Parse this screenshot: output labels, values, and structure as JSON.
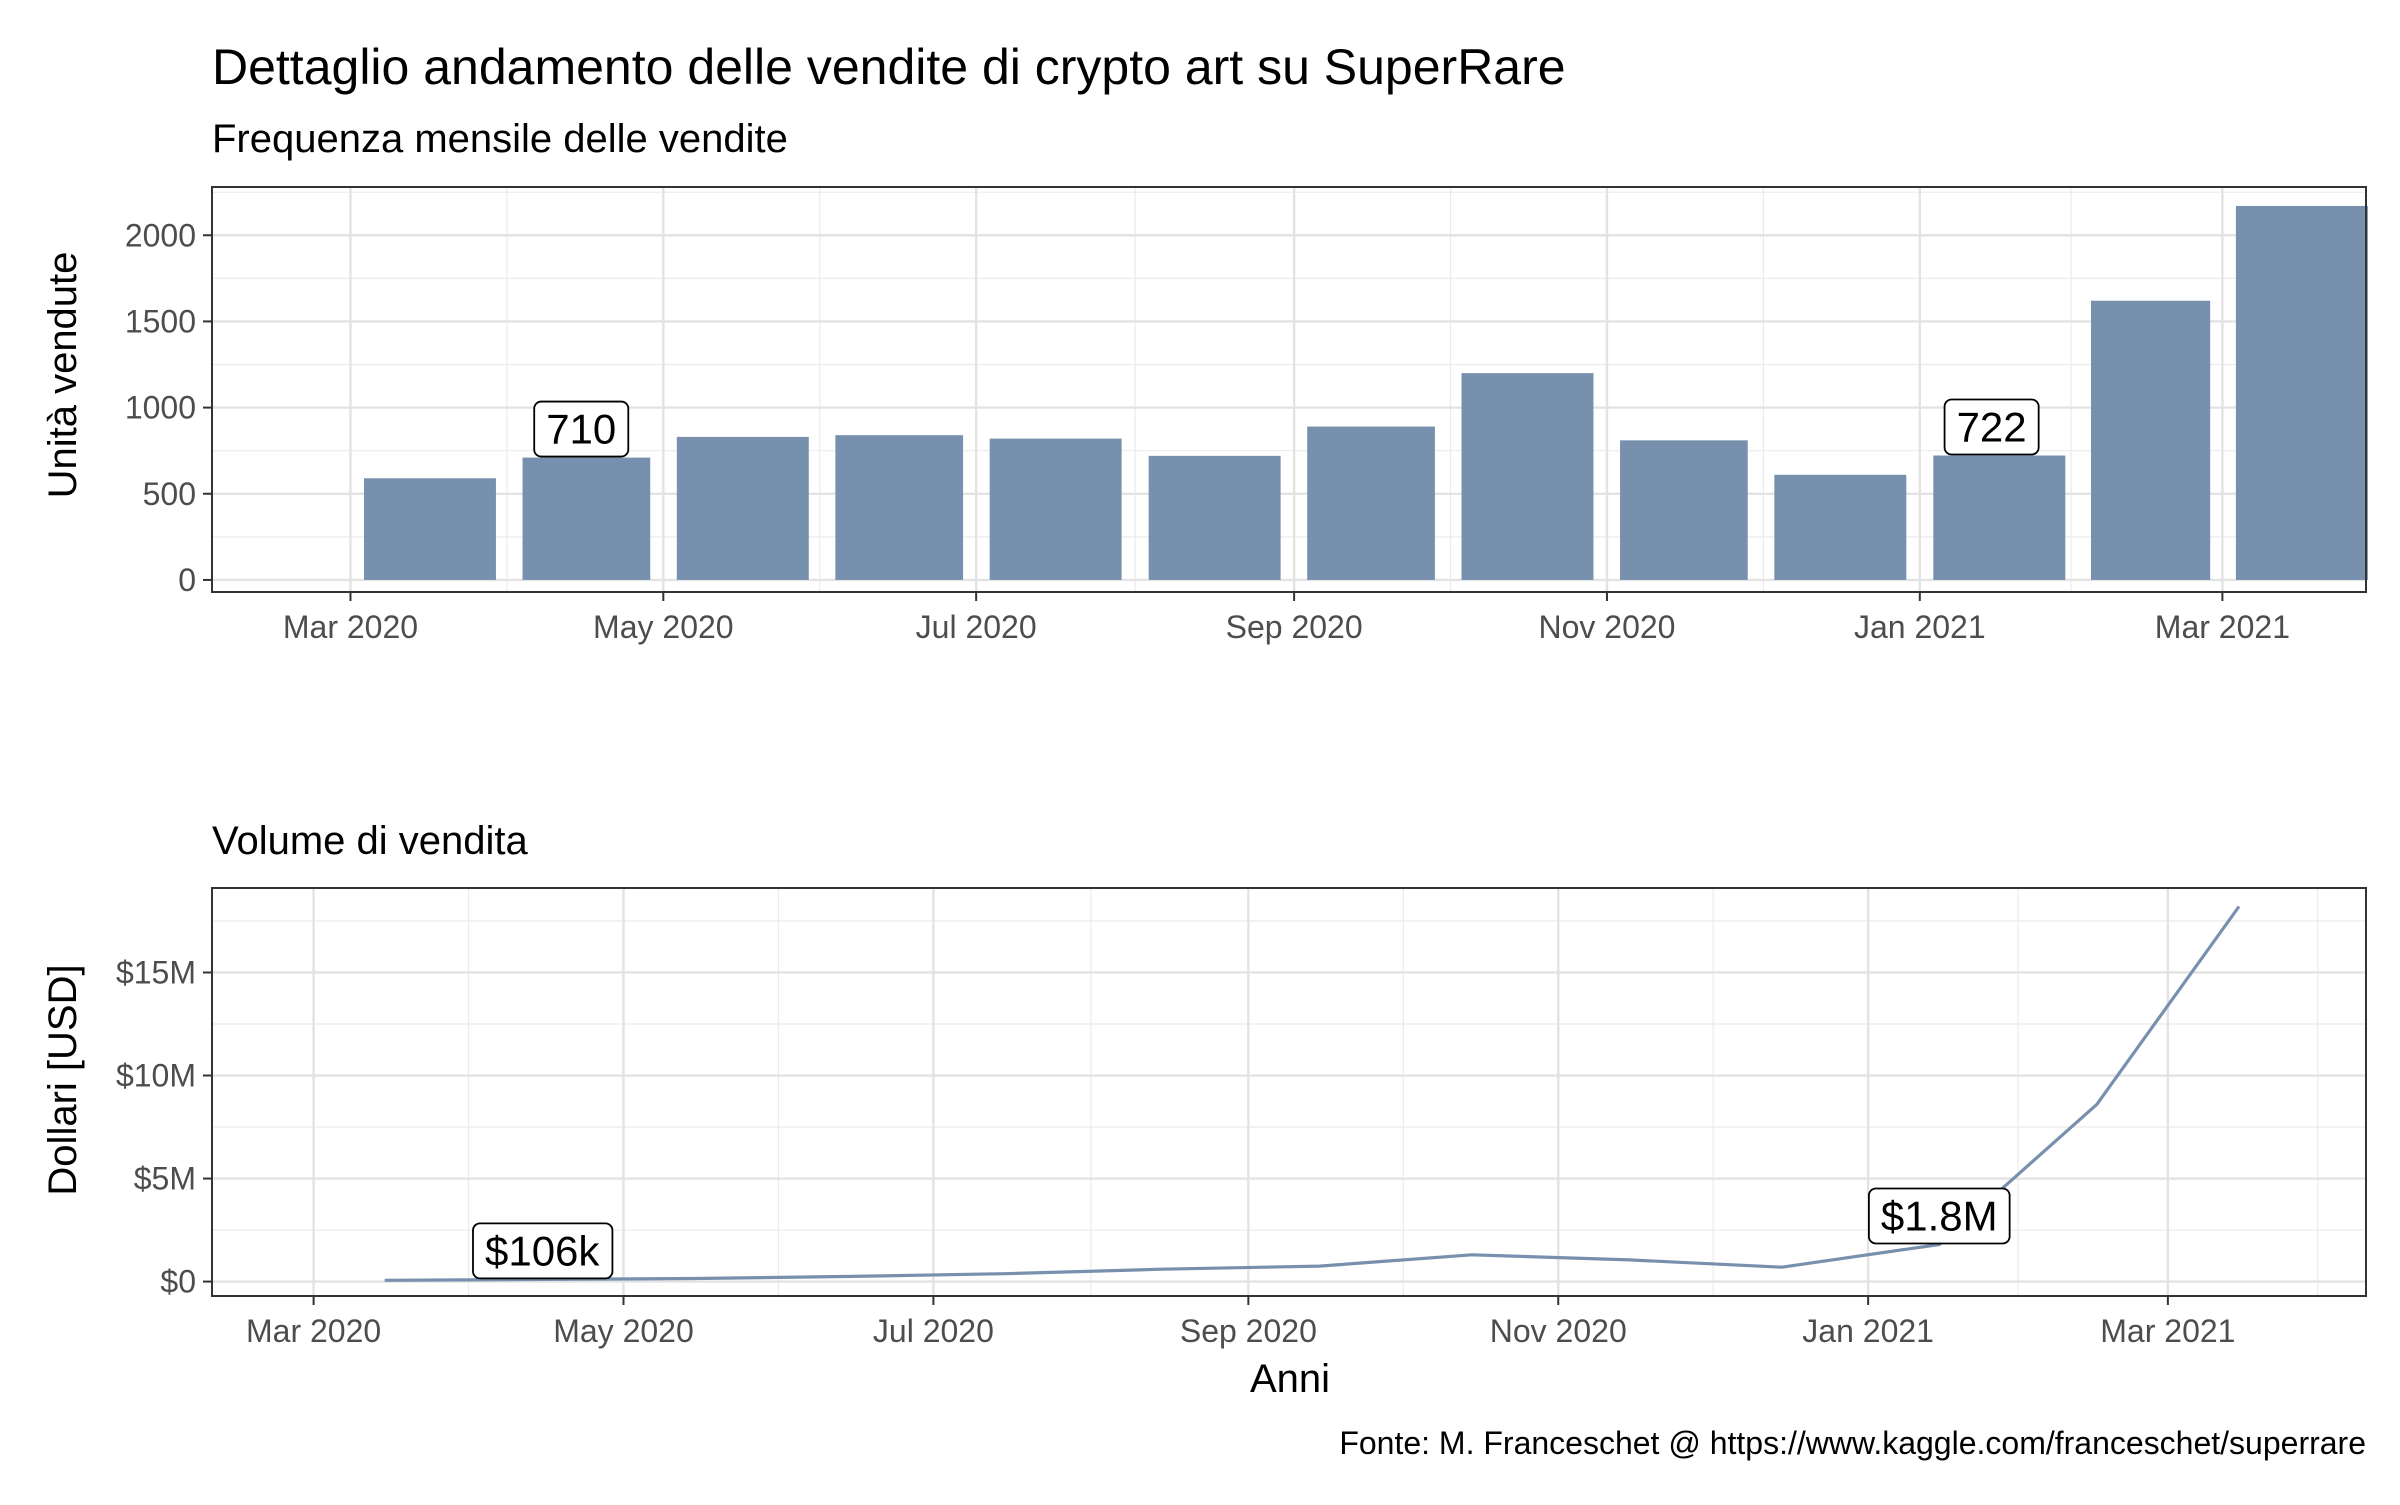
{
  "header": {
    "title": "Dettaglio andamento delle vendite di crypto art su SuperRare",
    "caption": "Fonte: M. Franceschet @ https://www.kaggle.com/franceschet/superrare"
  },
  "chart_data": [
    {
      "type": "bar",
      "subtitle": "Frequenza mensile delle vendite",
      "xlabel": "",
      "ylabel": "Unità vendute",
      "categories": [
        "2020-03",
        "2020-04",
        "2020-05",
        "2020-06",
        "2020-07",
        "2020-08",
        "2020-09",
        "2020-10",
        "2020-11",
        "2020-12",
        "2021-01",
        "2021-02",
        "2021-03"
      ],
      "values": [
        590,
        710,
        830,
        840,
        820,
        720,
        890,
        1200,
        810,
        610,
        722,
        1620,
        2170
      ],
      "x_ticks": [
        "Mar 2020",
        "May 2020",
        "Jul 2020",
        "Sep 2020",
        "Nov 2020",
        "Jan 2021",
        "Mar 2021"
      ],
      "y_ticks": [
        "0",
        "500",
        "1000",
        "1500",
        "2000"
      ],
      "y_tick_values": [
        0,
        500,
        1000,
        1500,
        2000
      ],
      "ylim": [
        -70,
        2280
      ],
      "annotations": [
        {
          "category": "2020-04",
          "value": 710,
          "label": "710"
        },
        {
          "category": "2021-01",
          "value": 722,
          "label": "722"
        }
      ],
      "bar_color": "#7790ae",
      "grid": true
    },
    {
      "type": "line",
      "subtitle": "Volume di vendita",
      "xlabel": "Anni",
      "ylabel": "Dollari [USD]",
      "x": [
        "2020-03",
        "2020-04",
        "2020-05",
        "2020-06",
        "2020-07",
        "2020-08",
        "2020-09",
        "2020-10",
        "2020-11",
        "2020-12",
        "2021-01",
        "2021-02",
        "2021-03"
      ],
      "values": [
        60000,
        106000,
        150000,
        250000,
        380000,
        600000,
        750000,
        1300000,
        1050000,
        700000,
        1800000,
        8600000,
        18200000
      ],
      "x_ticks": [
        "Mar 2020",
        "May 2020",
        "Jul 2020",
        "Sep 2020",
        "Nov 2020",
        "Jan 2021",
        "Mar 2021"
      ],
      "y_ticks": [
        "$0",
        "$5M",
        "$10M",
        "$15M"
      ],
      "y_tick_values": [
        0,
        5000000,
        10000000,
        15000000
      ],
      "ylim": [
        -700000,
        19100000
      ],
      "annotations": [
        {
          "x": "2020-04",
          "value": 106000,
          "label": "$106k"
        },
        {
          "x": "2021-01",
          "value": 1800000,
          "label": "$1.8M"
        }
      ],
      "line_color": "#7790ae",
      "grid": true
    }
  ]
}
